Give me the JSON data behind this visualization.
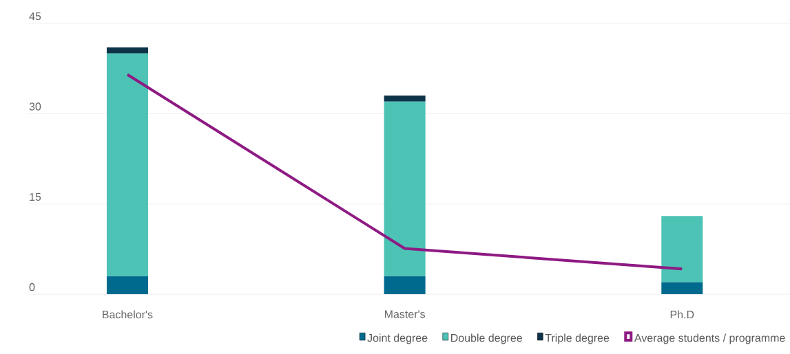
{
  "chart_data": {
    "type": "bar",
    "stacked": true,
    "categories": [
      "Bachelor's",
      "Master's",
      "Ph.D"
    ],
    "series": [
      {
        "name": "Joint degree",
        "color": "#006a8e",
        "values": [
          3,
          3,
          2
        ]
      },
      {
        "name": "Double degree",
        "color": "#4cc3b5",
        "values": [
          37,
          29,
          11
        ]
      },
      {
        "name": "Triple degree",
        "color": "#0d3349",
        "values": [
          1,
          1,
          0
        ]
      },
      {
        "name": "Average students / programme",
        "type": "line",
        "color": "#8e1a83",
        "values": [
          36.5,
          7.6,
          4.2
        ]
      }
    ],
    "ylim": [
      0,
      45
    ],
    "yticks": [
      0,
      15,
      30,
      45
    ],
    "grid": "y",
    "legend": "bottom",
    "marker": "none"
  }
}
